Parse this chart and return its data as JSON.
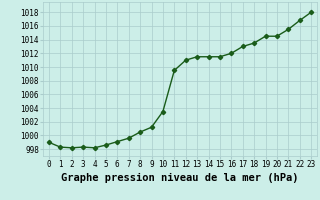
{
  "x": [
    0,
    1,
    2,
    3,
    4,
    5,
    6,
    7,
    8,
    9,
    10,
    11,
    12,
    13,
    14,
    15,
    16,
    17,
    18,
    19,
    20,
    21,
    22,
    23
  ],
  "y": [
    999.0,
    998.3,
    998.2,
    998.3,
    998.2,
    998.6,
    999.1,
    999.6,
    1000.5,
    1001.2,
    1003.5,
    1009.5,
    1011.0,
    1011.5,
    1011.5,
    1011.5,
    1012.0,
    1013.0,
    1013.5,
    1014.5,
    1014.5,
    1015.5,
    1016.8,
    1018.0
  ],
  "line_color": "#1a5c1a",
  "marker": "D",
  "marker_size": 2.2,
  "bg_color": "#cceee8",
  "grid_color": "#aacccc",
  "xlabel": "Graphe pression niveau de la mer (hPa)",
  "xlabel_fontsize": 7.5,
  "ylabel_ticks": [
    998,
    1000,
    1002,
    1004,
    1006,
    1008,
    1010,
    1012,
    1014,
    1016,
    1018
  ],
  "ylim": [
    997.0,
    1019.5
  ],
  "xlim": [
    -0.5,
    23.5
  ],
  "xticks": [
    0,
    1,
    2,
    3,
    4,
    5,
    6,
    7,
    8,
    9,
    10,
    11,
    12,
    13,
    14,
    15,
    16,
    17,
    18,
    19,
    20,
    21,
    22,
    23
  ],
  "tick_fontsize": 5.5,
  "line_width": 1.0
}
